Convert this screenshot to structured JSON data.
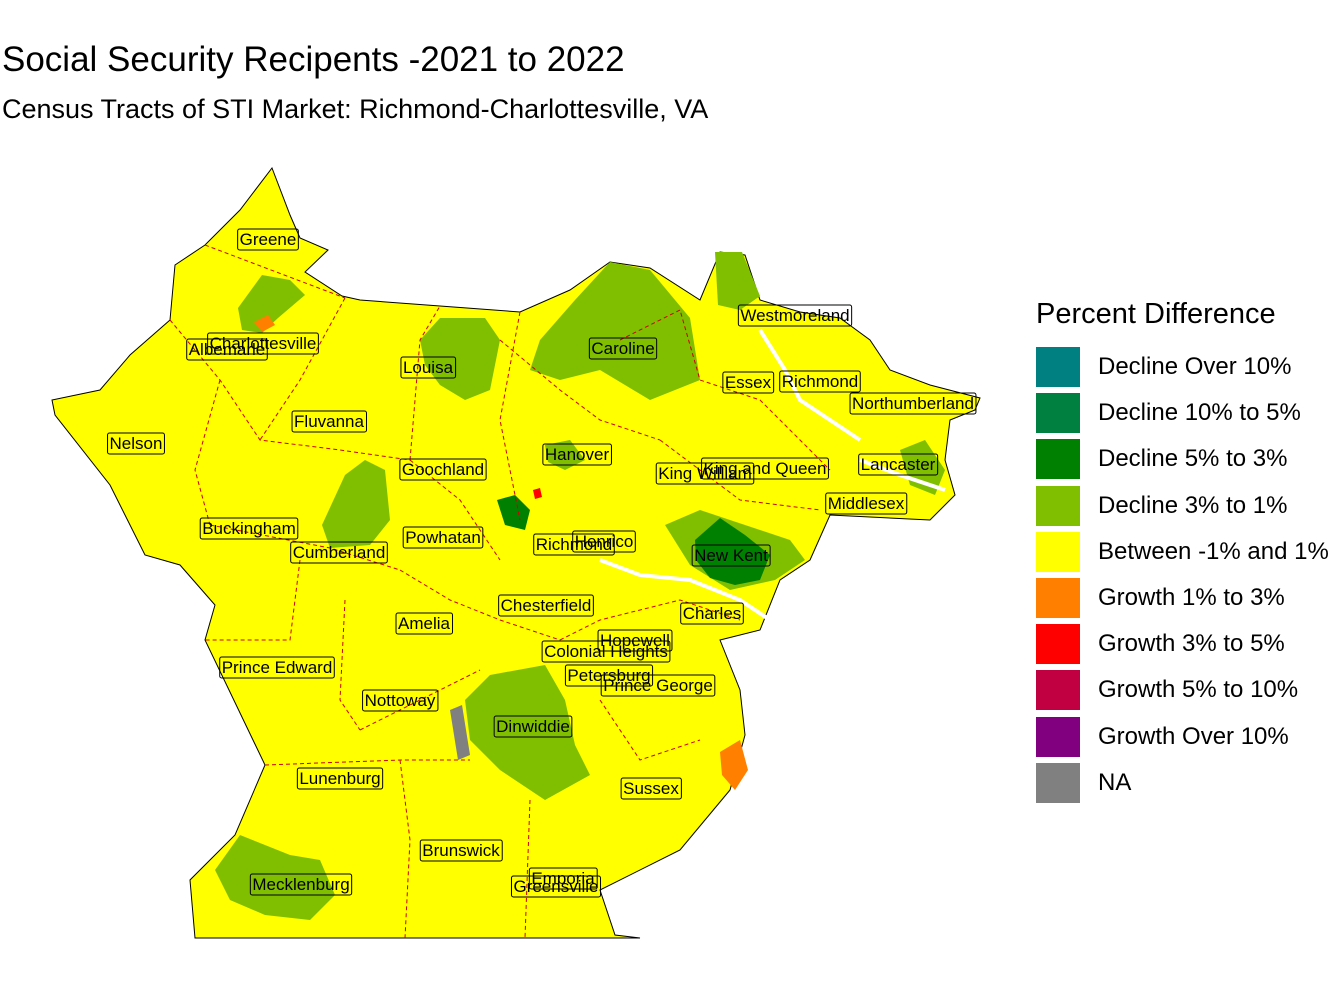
{
  "title": "Social Security Recipents -2021 to 2022",
  "subtitle": "Census Tracts of STI Market: Richmond-Charlottesville, VA",
  "legend": {
    "title": "Percent Difference",
    "items": [
      {
        "label": "Decline Over 10%",
        "color": "#008080"
      },
      {
        "label": "Decline 10% to 5%",
        "color": "#008040"
      },
      {
        "label": "Decline 5% to 3%",
        "color": "#008000"
      },
      {
        "label": "Decline 3% to 1%",
        "color": "#80BF00"
      },
      {
        "label": "Between -1% and 1%",
        "color": "#FFFF00"
      },
      {
        "label": "Growth 1% to 3%",
        "color": "#FF8000"
      },
      {
        "label": "Growth 3% to 5%",
        "color": "#FF0000"
      },
      {
        "label": "Growth 5% to 10%",
        "color": "#C00040"
      },
      {
        "label": "Growth Over 10%",
        "color": "#800080"
      },
      {
        "label": "NA",
        "color": "#808080"
      }
    ]
  },
  "counties": [
    {
      "name": "Greene"
    },
    {
      "name": "Charlottesville"
    },
    {
      "name": "Albemarle"
    },
    {
      "name": "Louisa"
    },
    {
      "name": "Caroline"
    },
    {
      "name": "Westmoreland"
    },
    {
      "name": "Essex"
    },
    {
      "name": "Richmond"
    },
    {
      "name": "Northumberland"
    },
    {
      "name": "Nelson"
    },
    {
      "name": "Fluvanna"
    },
    {
      "name": "Goochland"
    },
    {
      "name": "Hanover"
    },
    {
      "name": "King William"
    },
    {
      "name": "King and Queen"
    },
    {
      "name": "Lancaster"
    },
    {
      "name": "Middlesex"
    },
    {
      "name": "Buckingham"
    },
    {
      "name": "Cumberland"
    },
    {
      "name": "Powhatan"
    },
    {
      "name": "Richmond"
    },
    {
      "name": "Henrico"
    },
    {
      "name": "New Kent"
    },
    {
      "name": "Chesterfield"
    },
    {
      "name": "Charles"
    },
    {
      "name": "Amelia"
    },
    {
      "name": "Hopewell"
    },
    {
      "name": "Colonial Heights"
    },
    {
      "name": "Prince Edward"
    },
    {
      "name": "Petersburg"
    },
    {
      "name": "Prince George"
    },
    {
      "name": "Nottoway"
    },
    {
      "name": "Dinwiddie"
    },
    {
      "name": "Lunenburg"
    },
    {
      "name": "Sussex"
    },
    {
      "name": "Brunswick"
    },
    {
      "name": "Emporia"
    },
    {
      "name": "Greensville"
    },
    {
      "name": "Mecklenburg"
    }
  ]
}
